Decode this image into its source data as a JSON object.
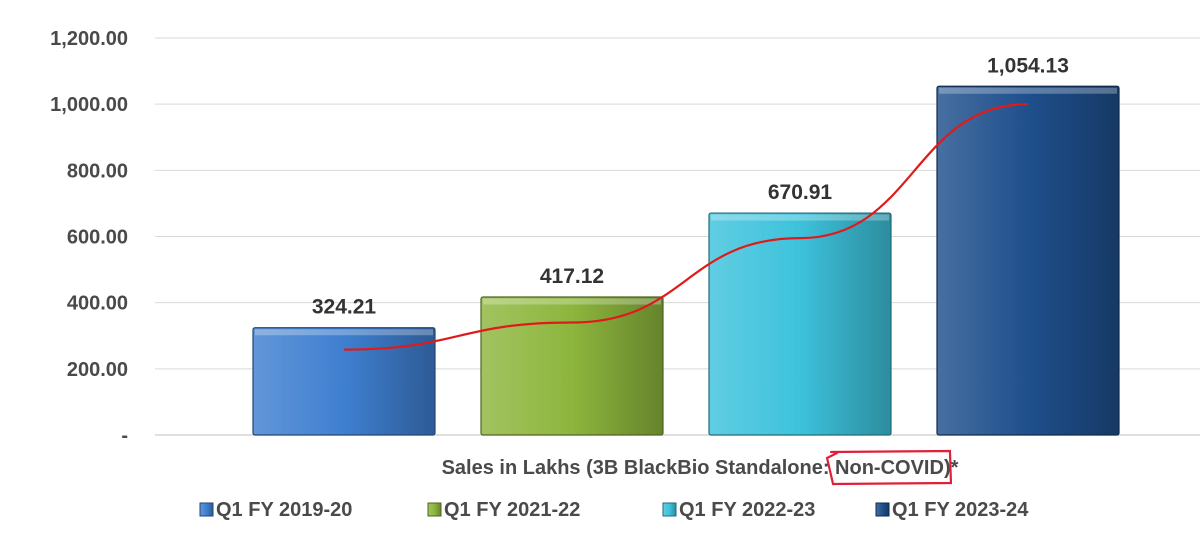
{
  "chart_data": {
    "type": "bar",
    "categories": [
      "Q1 FY 2019-20",
      "Q1 FY 2021-22",
      "Q1 FY 2022-23",
      "Q1 FY 2023-24"
    ],
    "series": [
      {
        "values": [
          324.21,
          417.12,
          670.91,
          1054.13
        ],
        "data_labels": [
          "324.21",
          "417.12",
          "670.91",
          "1,054.13"
        ],
        "colors": [
          "#3f7fd0",
          "#8db63d",
          "#3dc2dc",
          "#1f4f8c"
        ]
      }
    ],
    "trendline": {
      "color": "#e01a1a",
      "values": [
        258,
        340,
        595,
        1000
      ]
    },
    "xlabel_parts": {
      "before": "Sales in Lakhs (3B BlackBio Standalone: ",
      "circled": "Non-COVID",
      "after": ")*"
    },
    "annotation_color": "#e0203a",
    "ylim": [
      0,
      1200
    ],
    "yticks": [
      0,
      200,
      400,
      600,
      800,
      1000,
      1200
    ],
    "ytick_labels": [
      "-",
      "200.00",
      "400.00",
      "600.00",
      "800.00",
      "1,000.00",
      "1,200.00"
    ],
    "grid": true,
    "legend": {
      "placement": "bottom",
      "entries": [
        "Q1 FY 2019-20",
        "Q1 FY 2021-22",
        "Q1 FY 2022-23",
        "Q1 FY 2023-24"
      ]
    }
  }
}
